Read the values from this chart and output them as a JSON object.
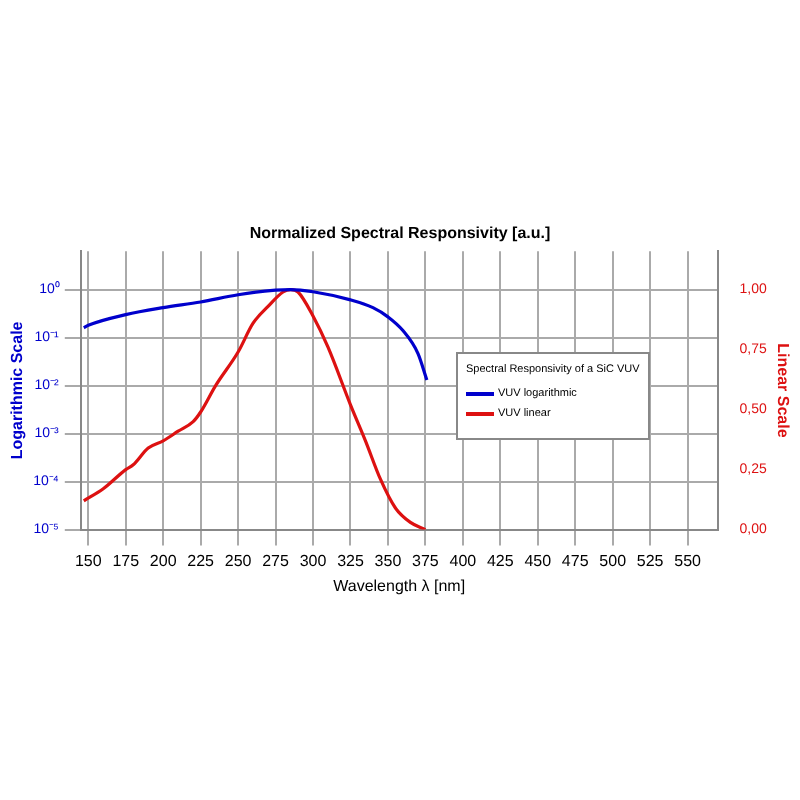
{
  "chart_data": {
    "type": "line",
    "title": "Normalized Spectral Responsivity [a.u.]",
    "xlabel": "Wavelength λ [nm]",
    "ylabel": "Logarithmic Scale",
    "y2label": "Linear Scale",
    "legend_title": "Spectral Responsivity of a SiC VUV",
    "series": [
      {
        "name": "VUV logarithmic",
        "color": "#0000cc",
        "axis": "y",
        "x": [
          147,
          150,
          175,
          200,
          225,
          250,
          275,
          285,
          300,
          325,
          340,
          350,
          360,
          370,
          376
        ],
        "values": [
          0.16,
          0.18,
          0.3,
          0.42,
          0.55,
          0.78,
          0.97,
          1.0,
          0.9,
          0.61,
          0.42,
          0.27,
          0.14,
          0.047,
          0.013
        ]
      },
      {
        "name": "VUV linear",
        "color": "#dd1111",
        "axis": "y2",
        "x": [
          147,
          160,
          175,
          180,
          190,
          200,
          210,
          220,
          225,
          235,
          250,
          260,
          270,
          280,
          285,
          290,
          300,
          310,
          325,
          335,
          345,
          355,
          365,
          375
        ],
        "values": [
          0.12,
          0.17,
          0.25,
          0.27,
          0.34,
          0.37,
          0.41,
          0.45,
          0.49,
          0.6,
          0.74,
          0.86,
          0.93,
          0.99,
          1.0,
          0.99,
          0.89,
          0.76,
          0.52,
          0.37,
          0.21,
          0.09,
          0.03,
          0.0
        ]
      }
    ],
    "log": "y",
    "xlim": [
      145,
      570
    ],
    "xticks": [
      150,
      175,
      200,
      225,
      250,
      275,
      300,
      325,
      350,
      375,
      400,
      425,
      450,
      475,
      500,
      525,
      550
    ],
    "ylim": [
      1e-05,
      6.3
    ],
    "yticks": [
      {
        "value": 1e-05,
        "label": "10⁻⁵"
      },
      {
        "value": 0.0001,
        "label": "10⁻⁴"
      },
      {
        "value": 0.001,
        "label": "10⁻³"
      },
      {
        "value": 0.01,
        "label": "10⁻²"
      },
      {
        "value": 0.1,
        "label": "10⁻¹"
      },
      {
        "value": 1,
        "label": "10⁰"
      }
    ],
    "y2lim": [
      0,
      1.16
    ],
    "y2ticks": [
      {
        "value": 0,
        "label": "0,00"
      },
      {
        "value": 0.25,
        "label": "0,25"
      },
      {
        "value": 0.5,
        "label": "0,50"
      },
      {
        "value": 0.75,
        "label": "0,75"
      },
      {
        "value": 1,
        "label": "1,00"
      }
    ],
    "grid": true,
    "legend": "right",
    "marker": "none",
    "line_style": "solid"
  }
}
